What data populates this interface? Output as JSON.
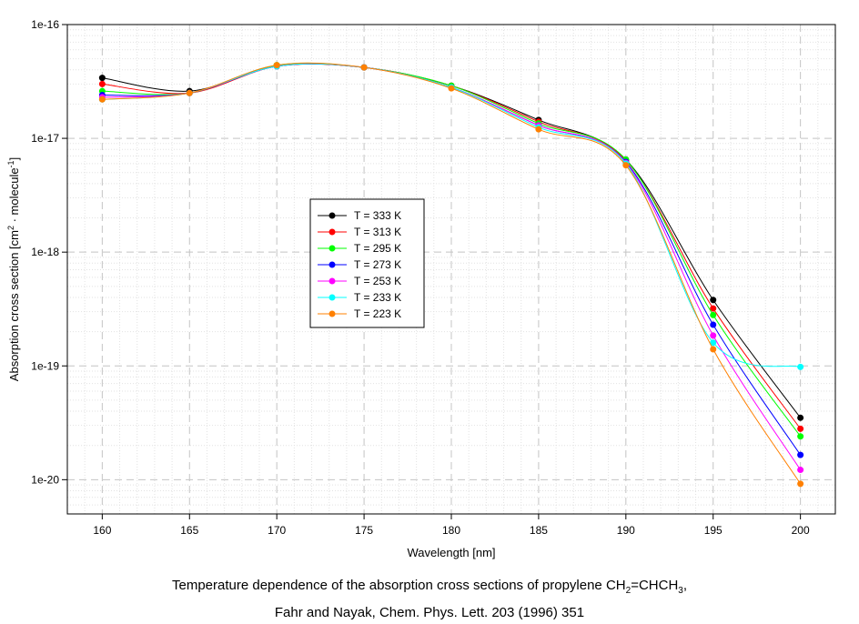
{
  "chart_data": {
    "type": "line",
    "xlabel": "Wavelength [nm]",
    "ylabel_parts": {
      "prefix": "Absorption cross section [cm",
      "sup1": "2",
      "mid": " · molecule",
      "sup2": "-1",
      "suffix": "]"
    },
    "x_ticks": [
      160,
      165,
      170,
      175,
      180,
      185,
      190,
      195,
      200
    ],
    "xlim": [
      158,
      202
    ],
    "y_scale": "log",
    "ylim": [
      5e-21,
      1e-16
    ],
    "y_ticks": [
      1e-20,
      1e-19,
      1e-18,
      1e-17,
      1e-16
    ],
    "y_tick_labels": [
      "1e-20",
      "1e-19",
      "1e-18",
      "1e-17",
      "1e-16"
    ],
    "grid": true,
    "legend_position": "center-left",
    "x": [
      160,
      165,
      170,
      175,
      180,
      185,
      190,
      195,
      200
    ],
    "series": [
      {
        "name": "T = 333 K",
        "color": "#000000",
        "values": [
          3.4e-17,
          2.6e-17,
          4.3e-17,
          4.2e-17,
          2.9e-17,
          1.45e-17,
          6.5e-18,
          3.8e-19,
          3.5e-20
        ]
      },
      {
        "name": "T = 313 K",
        "color": "#ff0000",
        "values": [
          3e-17,
          2.5e-17,
          4.3e-17,
          4.2e-17,
          2.9e-17,
          1.4e-17,
          6.4e-18,
          3.2e-19,
          2.8e-20
        ]
      },
      {
        "name": "T = 295 K",
        "color": "#00ff00",
        "values": [
          2.6e-17,
          2.5e-17,
          4.4e-17,
          4.2e-17,
          2.9e-17,
          1.35e-17,
          6.5e-18,
          2.8e-19,
          2.4e-20
        ]
      },
      {
        "name": "T = 273 K",
        "color": "#0000ff",
        "values": [
          2.4e-17,
          2.5e-17,
          4.3e-17,
          4.2e-17,
          2.8e-17,
          1.3e-17,
          6.2e-18,
          2.3e-19,
          1.65e-20
        ]
      },
      {
        "name": "T = 253 K",
        "color": "#ff00ff",
        "values": [
          2.3e-17,
          2.5e-17,
          4.3e-17,
          4.2e-17,
          2.8e-17,
          1.3e-17,
          6.1e-18,
          1.85e-19,
          1.22e-20
        ]
      },
      {
        "name": "T = 233 K",
        "color": "#00ffff",
        "values": [
          2.2e-17,
          2.5e-17,
          4.3e-17,
          4.2e-17,
          2.8e-17,
          1.25e-17,
          6e-18,
          1.6e-19,
          9.8e-20
        ]
      },
      {
        "name": "T = 223 K",
        "color": "#ff8000",
        "values": [
          2.2e-17,
          2.5e-17,
          4.4e-17,
          4.2e-17,
          2.75e-17,
          1.2e-17,
          5.8e-18,
          1.4e-19,
          9.2e-21
        ]
      }
    ]
  },
  "caption": {
    "line1_a": "Temperature dependence of the absorption cross sections of propylene CH",
    "line1_sub1": "2",
    "line1_b": "=CHCH",
    "line1_sub2": "3",
    "line1_c": ",",
    "line2": "Fahr and Nayak, Chem. Phys. Lett. 203 (1996) 351"
  }
}
